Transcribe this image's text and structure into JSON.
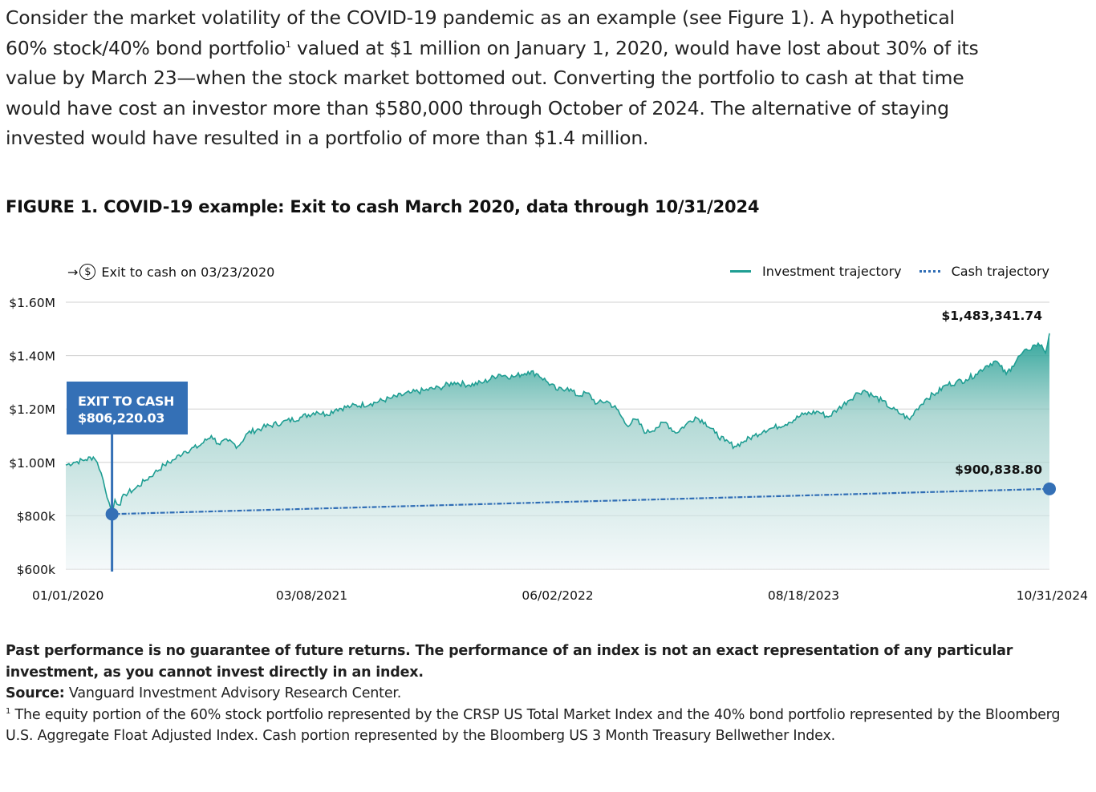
{
  "intro": {
    "line1": "Consider the market volatility of the COVID-19 pandemic as an example (see Figure 1). A hypothetical",
    "line2a": "60% stock/40% bond portfolio",
    "line2_sup": "1",
    "line2b": " valued at $1 million on January 1, 2020, would have lost about 30% of its",
    "line3": "value by March 23—when the stock market bottomed out. Converting the portfolio to cash at that time",
    "line4": "would have cost an investor more than $580,000 through October of 2024. The alternative of staying",
    "line5": "invested would have resulted in a portfolio of more than $1.4 million."
  },
  "figure_title": "FIGURE 1. COVID-19 example: Exit to cash March 2020, data through 10/31/2024",
  "legend": {
    "arrow_icon": "→",
    "dollar_icon": "$",
    "exit_label": "Exit to cash on 03/23/2020",
    "investment_label": "Investment trajectory",
    "cash_label": "Cash trajectory"
  },
  "callout": {
    "title": "EXIT TO CASH",
    "value": "$806,220.03"
  },
  "colors": {
    "investment": "#1f9e93",
    "cash": "#2f6db5",
    "callout": "#3470b6",
    "grid": "#d0d0d0"
  },
  "chart_data": {
    "type": "area",
    "title": "FIGURE 1. COVID-19 example: Exit to cash March 2020, data through 10/31/2024",
    "xlabel": "",
    "ylabel": "",
    "x_range": [
      "01/01/2020",
      "10/31/2024"
    ],
    "x_ticks": [
      "01/01/2020",
      "03/08/2021",
      "06/02/2022",
      "08/18/2023",
      "10/31/2024"
    ],
    "y_ticks": [
      {
        "value": 600000,
        "label": "$600k"
      },
      {
        "value": 800000,
        "label": "$800k"
      },
      {
        "value": 1000000,
        "label": "$1.00M"
      },
      {
        "value": 1200000,
        "label": "$1.20M"
      },
      {
        "value": 1400000,
        "label": "$1.40M"
      },
      {
        "value": 1600000,
        "label": "$1.60M"
      }
    ],
    "ylim": [
      600000,
      1600000
    ],
    "grid": true,
    "legend_position": "top",
    "series": [
      {
        "name": "Investment trajectory",
        "style": "solid-area",
        "points_t_value": [
          [
            0.0,
            990000
          ],
          [
            0.008,
            1000000
          ],
          [
            0.02,
            1010000
          ],
          [
            0.028,
            1020000
          ],
          [
            0.032,
            1000000
          ],
          [
            0.036,
            960000
          ],
          [
            0.04,
            900000
          ],
          [
            0.044,
            850000
          ],
          [
            0.047,
            806220
          ],
          [
            0.05,
            860000
          ],
          [
            0.054,
            840000
          ],
          [
            0.06,
            880000
          ],
          [
            0.07,
            900000
          ],
          [
            0.08,
            930000
          ],
          [
            0.09,
            960000
          ],
          [
            0.1,
            990000
          ],
          [
            0.11,
            1010000
          ],
          [
            0.12,
            1040000
          ],
          [
            0.135,
            1060000
          ],
          [
            0.148,
            1100000
          ],
          [
            0.155,
            1070000
          ],
          [
            0.165,
            1080000
          ],
          [
            0.175,
            1060000
          ],
          [
            0.185,
            1110000
          ],
          [
            0.2,
            1130000
          ],
          [
            0.22,
            1150000
          ],
          [
            0.24,
            1170000
          ],
          [
            0.255,
            1190000
          ],
          [
            0.265,
            1180000
          ],
          [
            0.275,
            1200000
          ],
          [
            0.29,
            1210000
          ],
          [
            0.31,
            1220000
          ],
          [
            0.33,
            1240000
          ],
          [
            0.35,
            1260000
          ],
          [
            0.365,
            1270000
          ],
          [
            0.38,
            1280000
          ],
          [
            0.395,
            1300000
          ],
          [
            0.41,
            1290000
          ],
          [
            0.425,
            1300000
          ],
          [
            0.44,
            1330000
          ],
          [
            0.455,
            1320000
          ],
          [
            0.47,
            1340000
          ],
          [
            0.48,
            1330000
          ],
          [
            0.49,
            1300000
          ],
          [
            0.5,
            1270000
          ],
          [
            0.51,
            1280000
          ],
          [
            0.52,
            1250000
          ],
          [
            0.53,
            1260000
          ],
          [
            0.54,
            1220000
          ],
          [
            0.55,
            1230000
          ],
          [
            0.56,
            1200000
          ],
          [
            0.57,
            1140000
          ],
          [
            0.58,
            1160000
          ],
          [
            0.59,
            1110000
          ],
          [
            0.6,
            1130000
          ],
          [
            0.61,
            1150000
          ],
          [
            0.62,
            1110000
          ],
          [
            0.63,
            1140000
          ],
          [
            0.64,
            1170000
          ],
          [
            0.65,
            1150000
          ],
          [
            0.66,
            1110000
          ],
          [
            0.67,
            1080000
          ],
          [
            0.68,
            1060000
          ],
          [
            0.69,
            1080000
          ],
          [
            0.7,
            1100000
          ],
          [
            0.71,
            1120000
          ],
          [
            0.72,
            1130000
          ],
          [
            0.735,
            1150000
          ],
          [
            0.75,
            1180000
          ],
          [
            0.765,
            1190000
          ],
          [
            0.775,
            1170000
          ],
          [
            0.785,
            1200000
          ],
          [
            0.795,
            1230000
          ],
          [
            0.805,
            1260000
          ],
          [
            0.812,
            1270000
          ],
          [
            0.82,
            1250000
          ],
          [
            0.83,
            1230000
          ],
          [
            0.84,
            1200000
          ],
          [
            0.85,
            1180000
          ],
          [
            0.858,
            1160000
          ],
          [
            0.865,
            1200000
          ],
          [
            0.875,
            1240000
          ],
          [
            0.885,
            1260000
          ],
          [
            0.895,
            1290000
          ],
          [
            0.905,
            1300000
          ],
          [
            0.915,
            1310000
          ],
          [
            0.925,
            1330000
          ],
          [
            0.935,
            1360000
          ],
          [
            0.945,
            1380000
          ],
          [
            0.95,
            1360000
          ],
          [
            0.956,
            1330000
          ],
          [
            0.962,
            1360000
          ],
          [
            0.97,
            1400000
          ],
          [
            0.978,
            1420000
          ],
          [
            0.985,
            1440000
          ],
          [
            0.992,
            1440000
          ],
          [
            0.996,
            1410000
          ],
          [
            1.0,
            1483342
          ]
        ],
        "end_label": "$1,483,341.74",
        "end_value": 1483341.74
      },
      {
        "name": "Cash trajectory",
        "style": "dotted",
        "start_t": 0.047,
        "start_value": 806220.03,
        "end_t": 1.0,
        "end_value": 900838.8,
        "end_label": "$900,838.80"
      }
    ],
    "annotations": [
      {
        "text": "EXIT TO CASH $806,220.03",
        "date": "03/23/2020",
        "value": 806220.03
      }
    ]
  },
  "footer": {
    "disclaimer": "Past performance is no guarantee of future returns. The performance of an index is not an exact representation of any particular investment, as you cannot invest directly in an index.",
    "source_label": "Source:",
    "source_text": " Vanguard Investment Advisory Research Center.",
    "note_sup": "1",
    "note_text": " The equity portion of the 60% stock portfolio represented by the CRSP US Total Market Index and the 40% bond portfolio represented by the Bloomberg U.S. Aggregate Float Adjusted Index. Cash portion represented by the Bloomberg US 3 Month Treasury Bellwether Index."
  }
}
